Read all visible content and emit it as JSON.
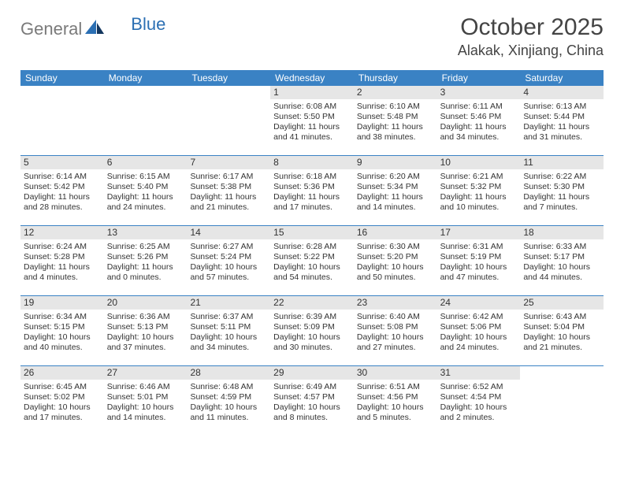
{
  "brand": {
    "general": "General",
    "blue": "Blue"
  },
  "title": "October 2025",
  "location": "Alakak, Xinjiang, China",
  "colors": {
    "header_bg": "#3a82c4",
    "header_text": "#ffffff",
    "daynum_bg": "#e6e6e6",
    "text": "#333333",
    "rule": "#3a82c4",
    "logo_gray": "#7a7a7a",
    "logo_blue": "#2b6fb3"
  },
  "day_headers": [
    "Sunday",
    "Monday",
    "Tuesday",
    "Wednesday",
    "Thursday",
    "Friday",
    "Saturday"
  ],
  "weeks": [
    [
      {
        "day": "",
        "sunrise": "",
        "sunset": "",
        "daylight": ""
      },
      {
        "day": "",
        "sunrise": "",
        "sunset": "",
        "daylight": ""
      },
      {
        "day": "",
        "sunrise": "",
        "sunset": "",
        "daylight": ""
      },
      {
        "day": "1",
        "sunrise": "Sunrise: 6:08 AM",
        "sunset": "Sunset: 5:50 PM",
        "daylight": "Daylight: 11 hours and 41 minutes."
      },
      {
        "day": "2",
        "sunrise": "Sunrise: 6:10 AM",
        "sunset": "Sunset: 5:48 PM",
        "daylight": "Daylight: 11 hours and 38 minutes."
      },
      {
        "day": "3",
        "sunrise": "Sunrise: 6:11 AM",
        "sunset": "Sunset: 5:46 PM",
        "daylight": "Daylight: 11 hours and 34 minutes."
      },
      {
        "day": "4",
        "sunrise": "Sunrise: 6:13 AM",
        "sunset": "Sunset: 5:44 PM",
        "daylight": "Daylight: 11 hours and 31 minutes."
      }
    ],
    [
      {
        "day": "5",
        "sunrise": "Sunrise: 6:14 AM",
        "sunset": "Sunset: 5:42 PM",
        "daylight": "Daylight: 11 hours and 28 minutes."
      },
      {
        "day": "6",
        "sunrise": "Sunrise: 6:15 AM",
        "sunset": "Sunset: 5:40 PM",
        "daylight": "Daylight: 11 hours and 24 minutes."
      },
      {
        "day": "7",
        "sunrise": "Sunrise: 6:17 AM",
        "sunset": "Sunset: 5:38 PM",
        "daylight": "Daylight: 11 hours and 21 minutes."
      },
      {
        "day": "8",
        "sunrise": "Sunrise: 6:18 AM",
        "sunset": "Sunset: 5:36 PM",
        "daylight": "Daylight: 11 hours and 17 minutes."
      },
      {
        "day": "9",
        "sunrise": "Sunrise: 6:20 AM",
        "sunset": "Sunset: 5:34 PM",
        "daylight": "Daylight: 11 hours and 14 minutes."
      },
      {
        "day": "10",
        "sunrise": "Sunrise: 6:21 AM",
        "sunset": "Sunset: 5:32 PM",
        "daylight": "Daylight: 11 hours and 10 minutes."
      },
      {
        "day": "11",
        "sunrise": "Sunrise: 6:22 AM",
        "sunset": "Sunset: 5:30 PM",
        "daylight": "Daylight: 11 hours and 7 minutes."
      }
    ],
    [
      {
        "day": "12",
        "sunrise": "Sunrise: 6:24 AM",
        "sunset": "Sunset: 5:28 PM",
        "daylight": "Daylight: 11 hours and 4 minutes."
      },
      {
        "day": "13",
        "sunrise": "Sunrise: 6:25 AM",
        "sunset": "Sunset: 5:26 PM",
        "daylight": "Daylight: 11 hours and 0 minutes."
      },
      {
        "day": "14",
        "sunrise": "Sunrise: 6:27 AM",
        "sunset": "Sunset: 5:24 PM",
        "daylight": "Daylight: 10 hours and 57 minutes."
      },
      {
        "day": "15",
        "sunrise": "Sunrise: 6:28 AM",
        "sunset": "Sunset: 5:22 PM",
        "daylight": "Daylight: 10 hours and 54 minutes."
      },
      {
        "day": "16",
        "sunrise": "Sunrise: 6:30 AM",
        "sunset": "Sunset: 5:20 PM",
        "daylight": "Daylight: 10 hours and 50 minutes."
      },
      {
        "day": "17",
        "sunrise": "Sunrise: 6:31 AM",
        "sunset": "Sunset: 5:19 PM",
        "daylight": "Daylight: 10 hours and 47 minutes."
      },
      {
        "day": "18",
        "sunrise": "Sunrise: 6:33 AM",
        "sunset": "Sunset: 5:17 PM",
        "daylight": "Daylight: 10 hours and 44 minutes."
      }
    ],
    [
      {
        "day": "19",
        "sunrise": "Sunrise: 6:34 AM",
        "sunset": "Sunset: 5:15 PM",
        "daylight": "Daylight: 10 hours and 40 minutes."
      },
      {
        "day": "20",
        "sunrise": "Sunrise: 6:36 AM",
        "sunset": "Sunset: 5:13 PM",
        "daylight": "Daylight: 10 hours and 37 minutes."
      },
      {
        "day": "21",
        "sunrise": "Sunrise: 6:37 AM",
        "sunset": "Sunset: 5:11 PM",
        "daylight": "Daylight: 10 hours and 34 minutes."
      },
      {
        "day": "22",
        "sunrise": "Sunrise: 6:39 AM",
        "sunset": "Sunset: 5:09 PM",
        "daylight": "Daylight: 10 hours and 30 minutes."
      },
      {
        "day": "23",
        "sunrise": "Sunrise: 6:40 AM",
        "sunset": "Sunset: 5:08 PM",
        "daylight": "Daylight: 10 hours and 27 minutes."
      },
      {
        "day": "24",
        "sunrise": "Sunrise: 6:42 AM",
        "sunset": "Sunset: 5:06 PM",
        "daylight": "Daylight: 10 hours and 24 minutes."
      },
      {
        "day": "25",
        "sunrise": "Sunrise: 6:43 AM",
        "sunset": "Sunset: 5:04 PM",
        "daylight": "Daylight: 10 hours and 21 minutes."
      }
    ],
    [
      {
        "day": "26",
        "sunrise": "Sunrise: 6:45 AM",
        "sunset": "Sunset: 5:02 PM",
        "daylight": "Daylight: 10 hours and 17 minutes."
      },
      {
        "day": "27",
        "sunrise": "Sunrise: 6:46 AM",
        "sunset": "Sunset: 5:01 PM",
        "daylight": "Daylight: 10 hours and 14 minutes."
      },
      {
        "day": "28",
        "sunrise": "Sunrise: 6:48 AM",
        "sunset": "Sunset: 4:59 PM",
        "daylight": "Daylight: 10 hours and 11 minutes."
      },
      {
        "day": "29",
        "sunrise": "Sunrise: 6:49 AM",
        "sunset": "Sunset: 4:57 PM",
        "daylight": "Daylight: 10 hours and 8 minutes."
      },
      {
        "day": "30",
        "sunrise": "Sunrise: 6:51 AM",
        "sunset": "Sunset: 4:56 PM",
        "daylight": "Daylight: 10 hours and 5 minutes."
      },
      {
        "day": "31",
        "sunrise": "Sunrise: 6:52 AM",
        "sunset": "Sunset: 4:54 PM",
        "daylight": "Daylight: 10 hours and 2 minutes."
      },
      {
        "day": "",
        "sunrise": "",
        "sunset": "",
        "daylight": ""
      }
    ]
  ]
}
